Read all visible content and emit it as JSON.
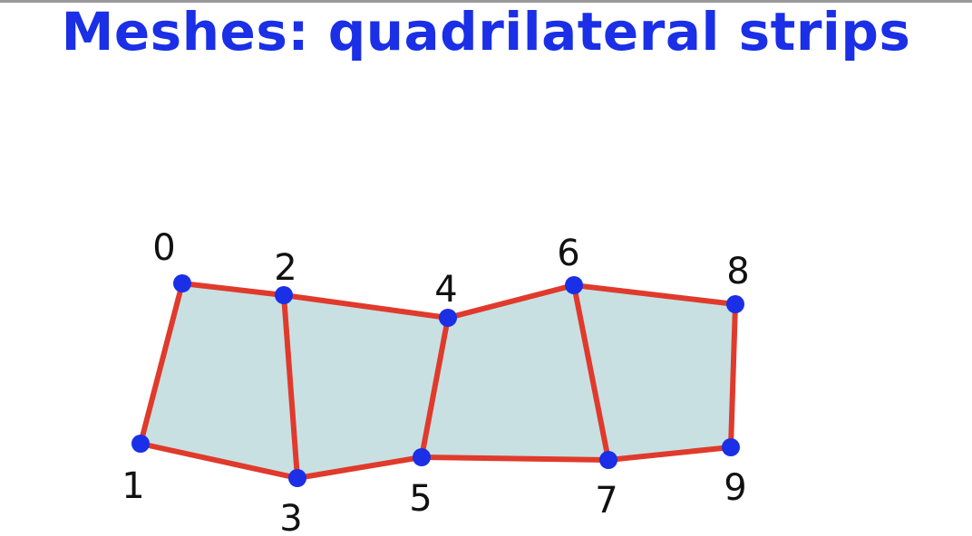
{
  "slide": {
    "title": "Meshes: quadrilateral strips"
  },
  "diagram": {
    "fill_color": "#c8e0e2",
    "edge_color": "#e03a2c",
    "vertex_color": "#1a2fe6",
    "label_color": "#111111",
    "vertices": [
      {
        "id": "0",
        "label": "0"
      },
      {
        "id": "1",
        "label": "1"
      },
      {
        "id": "2",
        "label": "2"
      },
      {
        "id": "3",
        "label": "3"
      },
      {
        "id": "4",
        "label": "4"
      },
      {
        "id": "5",
        "label": "5"
      },
      {
        "id": "6",
        "label": "6"
      },
      {
        "id": "7",
        "label": "7"
      },
      {
        "id": "8",
        "label": "8"
      },
      {
        "id": "9",
        "label": "9"
      }
    ]
  }
}
